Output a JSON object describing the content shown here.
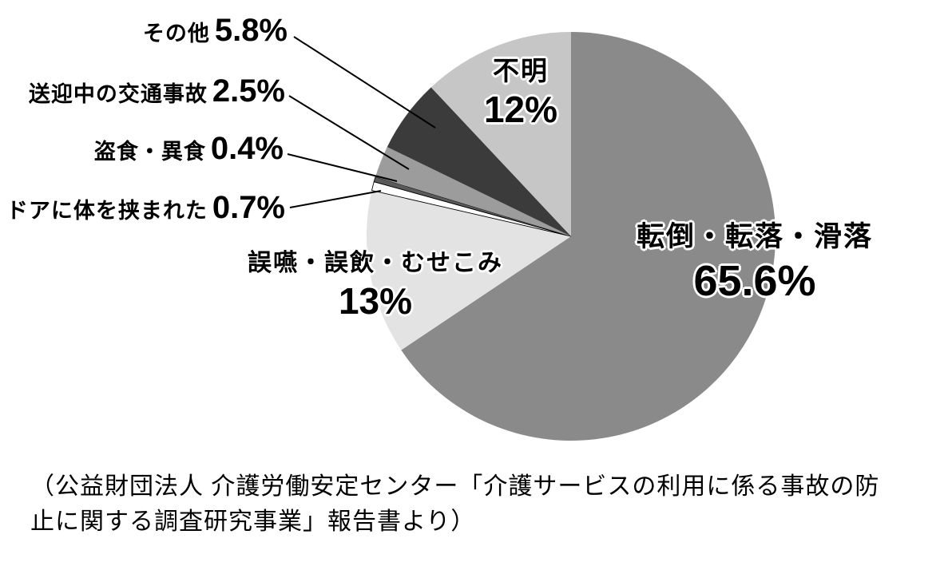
{
  "chart_data": {
    "type": "pie",
    "title": "",
    "start_angle_deg": 0,
    "direction": "clockwise",
    "slices": [
      {
        "label": "転倒・転落・滑落",
        "value": 65.6,
        "display": "65.6%",
        "color": "#8a8a8a",
        "label_placement": "inside"
      },
      {
        "label": "誤嚥・誤飲・むせこみ",
        "value": 13,
        "display": "13%",
        "color": "#e3e3e3",
        "label_placement": "outside"
      },
      {
        "label": "ドアに体を挟まれた",
        "value": 0.7,
        "display": "0.7%",
        "color": "#ffffff",
        "label_placement": "outside-leader"
      },
      {
        "label": "盗食・異食",
        "value": 0.4,
        "display": "0.4%",
        "color": "#5a5a5a",
        "label_placement": "outside-leader"
      },
      {
        "label": "送迎中の交通事故",
        "value": 2.5,
        "display": "2.5%",
        "color": "#9c9c9c",
        "label_placement": "outside-leader"
      },
      {
        "label": "その他",
        "value": 5.8,
        "display": "5.8%",
        "color": "#3b3b3b",
        "label_placement": "outside-leader"
      },
      {
        "label": "不明",
        "value": 12,
        "display": "12%",
        "color": "#c6c6c6",
        "label_placement": "inside"
      }
    ],
    "legend_position": "none",
    "caption_line1": "（公益財団法人 介護労働安定センター「介護サービスの利用に係る事故の防",
    "caption_line2": "止に関する調査研究事業」報告書より）"
  }
}
